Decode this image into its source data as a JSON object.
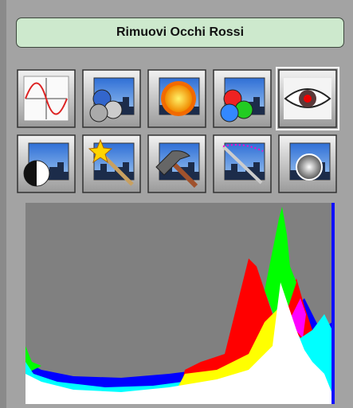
{
  "header": {
    "title": "Rimuovi Occhi Rossi"
  }
}
